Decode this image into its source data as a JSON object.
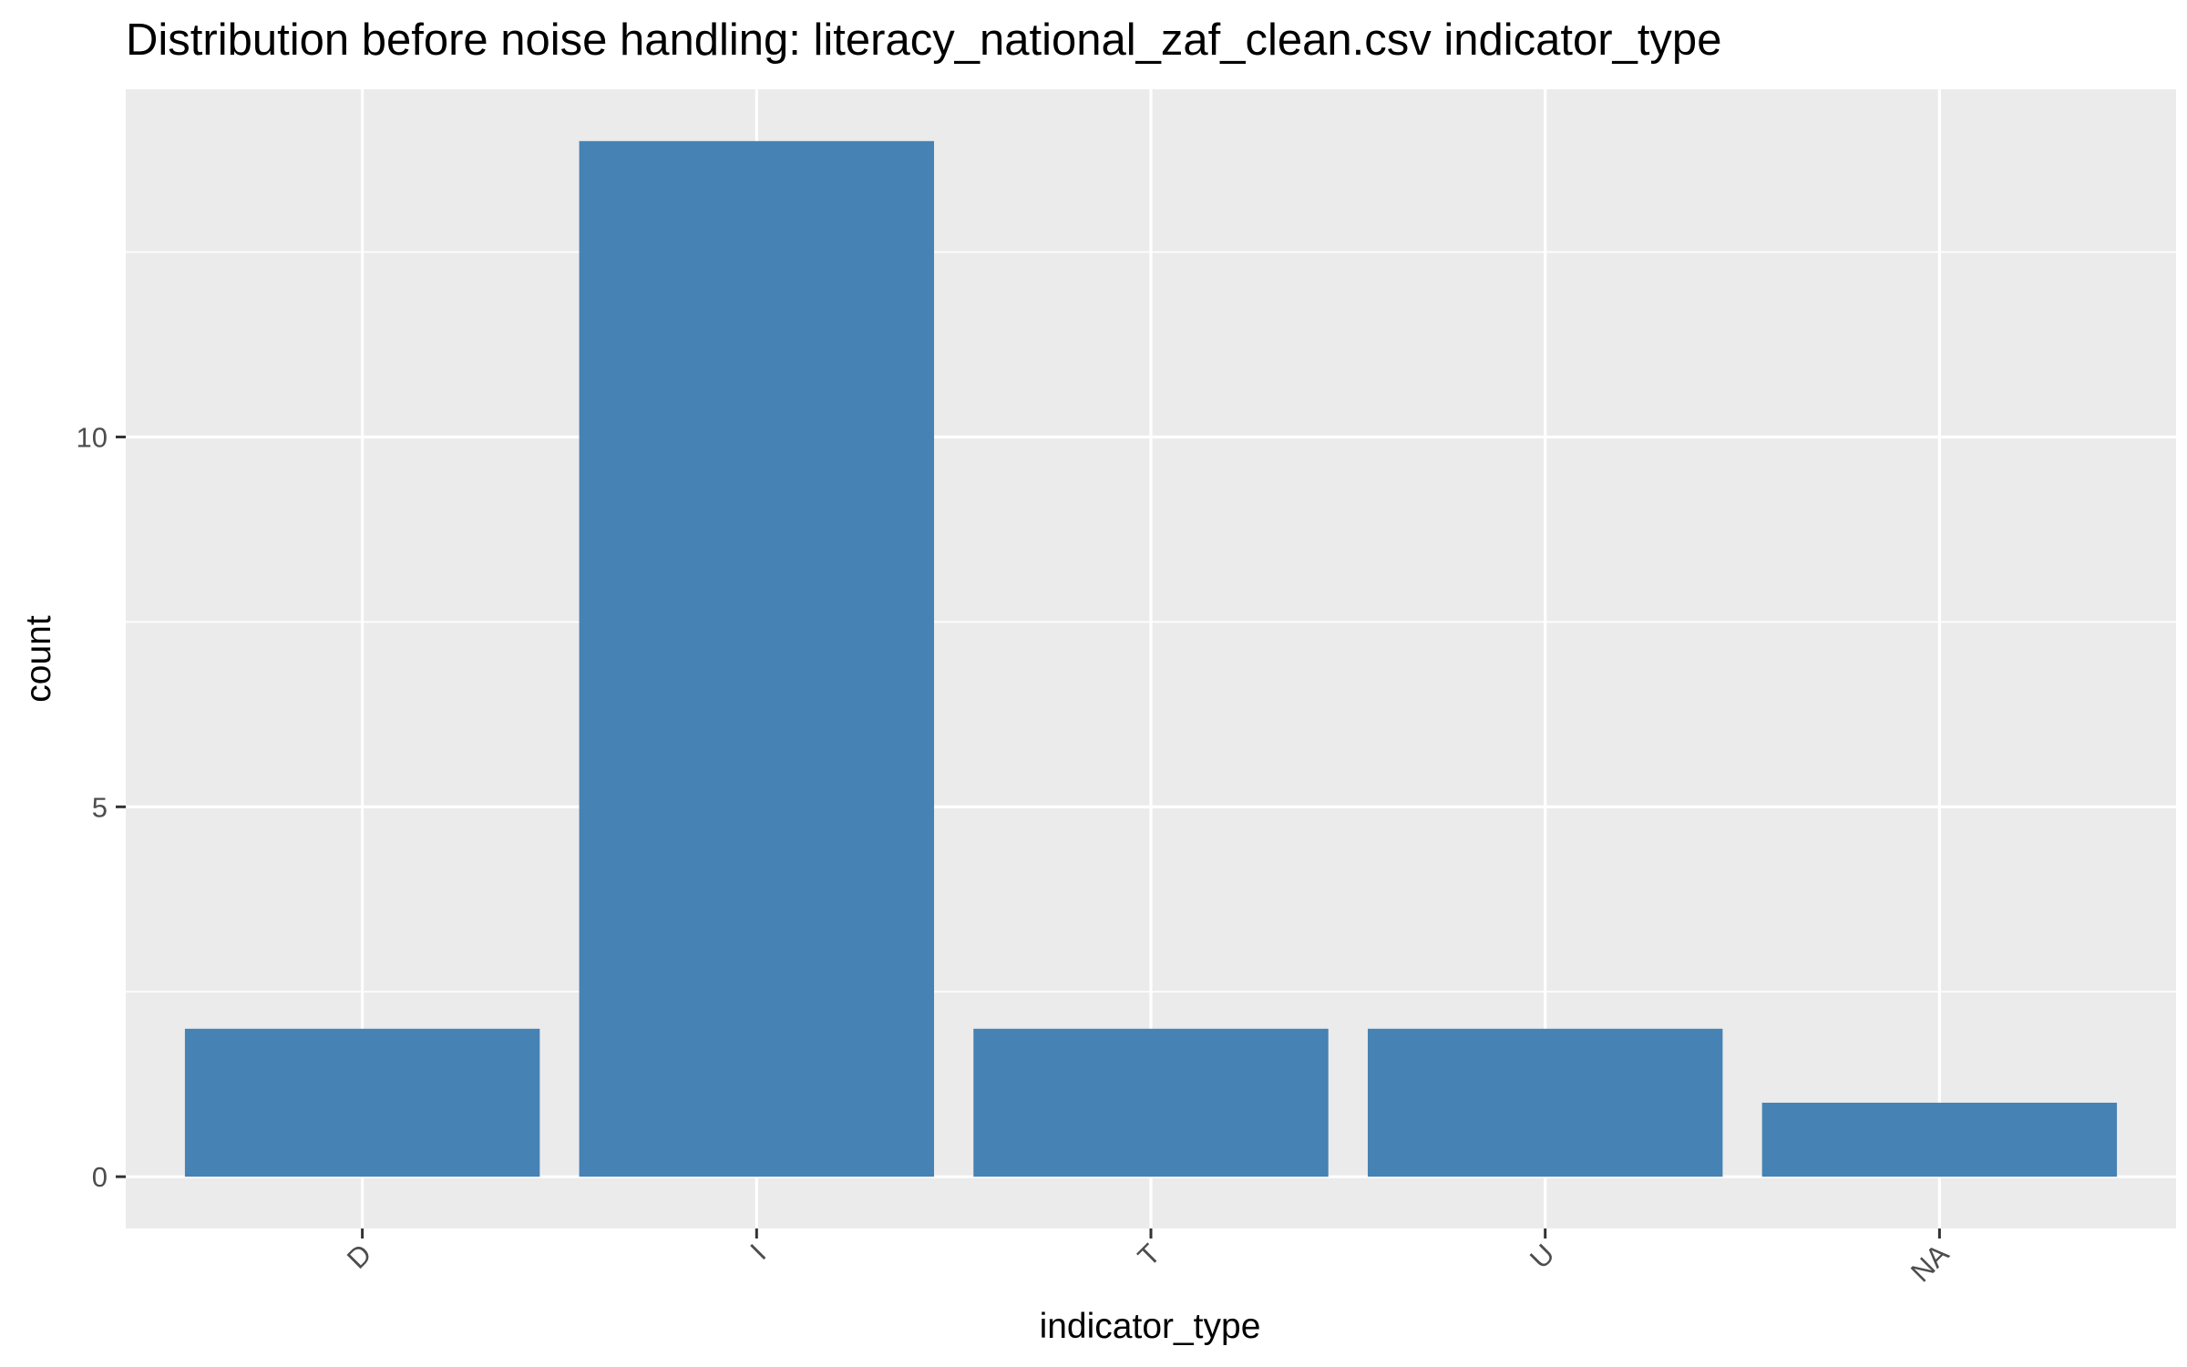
{
  "chart_data": {
    "type": "bar",
    "title": "Distribution before noise handling: literacy_national_zaf_clean.csv indicator_type",
    "xlabel": "indicator_type",
    "ylabel": "count",
    "categories": [
      "D",
      "I",
      "T",
      "U",
      "NA"
    ],
    "values": [
      2,
      14,
      2,
      2,
      1
    ],
    "ylim": [
      -0.7,
      14.7
    ],
    "y_ticks": [
      0,
      5,
      10
    ],
    "y_tick_labels": [
      "0",
      "5",
      "10"
    ],
    "grid": true,
    "legend": "none",
    "bar_color": "#4682B4",
    "panel_color": "#EBEBEB",
    "grid_color": "#FFFFFF"
  }
}
